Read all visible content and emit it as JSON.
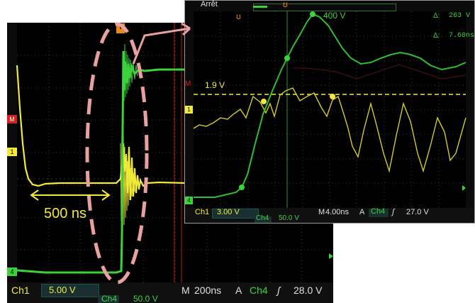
{
  "main_scope": {
    "ch1_label": "Ch1",
    "ch1_scale": "5.00 V",
    "time_label": "M",
    "timebase": "200ns",
    "trigger_letter": "A",
    "trigger_ch": "Ch4",
    "trigger_level": "28.0 V",
    "ch4_label": "Ch4",
    "ch4_scale": "50.0 V",
    "annotation_500ns": "500 ns",
    "marker_1": "1",
    "marker_4": "4",
    "marker_m": "M",
    "trigger_marker": "T"
  },
  "zoom_scope": {
    "status": "Arrêt",
    "delta_v_label": "Δ:",
    "delta_v_value": "263 V",
    "delta_t_label": "Δ:",
    "delta_t_value": "7.60ns",
    "label_400v": "400 V",
    "label_19v": "1.9 V",
    "ch1_label": "Ch1",
    "ch1_scale": "3.00 V",
    "time_label": "M",
    "timebase": "4.00ns",
    "trigger_letter": "A",
    "trigger_ch": "Ch4",
    "trigger_level": "27.0 V",
    "ch4_label": "Ch4",
    "ch4_scale": "50.0 V",
    "marker_m": "M",
    "marker_1": "1",
    "marker_4": "4"
  },
  "colors": {
    "ch1": "#f2ea3a",
    "ch4": "#3dd23d",
    "annotation": "#e8a0a0",
    "cursor": "#d02020"
  }
}
